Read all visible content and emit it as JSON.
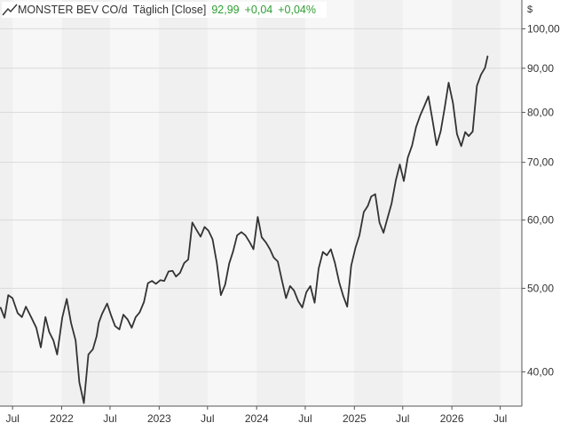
{
  "legend": {
    "instrument": "MONSTER BEV CO/d",
    "interval": "Täglich [Close]",
    "last": "92,99",
    "change": "+0,04",
    "change_pct": "+0,04%",
    "positive_color": "#2e9e32"
  },
  "chart_data": {
    "type": "line",
    "title": "MONSTER BEV CO/d",
    "currency_label": "$",
    "y_scale": "log",
    "ylim": [
      36.5,
      108
    ],
    "y_ticks": [
      40,
      50,
      60,
      70,
      80,
      90,
      100
    ],
    "y_tick_labels": [
      "40,00",
      "50,00",
      "60,00",
      "70,00",
      "80,00",
      "90,00",
      "100,00"
    ],
    "xlim": [
      "2021-05-15",
      "2026-09-20"
    ],
    "x_ticks": [
      "2021-07-01",
      "2022-01-01",
      "2022-07-01",
      "2023-01-01",
      "2023-07-01",
      "2024-01-01",
      "2024-07-01",
      "2025-01-01",
      "2025-07-01",
      "2026-01-01",
      "2026-07-01"
    ],
    "x_tick_labels": [
      "Jul",
      "2022",
      "Jul",
      "2023",
      "Jul",
      "2024",
      "Jul",
      "2025",
      "Jul",
      "2026",
      "Jul"
    ],
    "grid": true,
    "line_color": "#333333",
    "series": [
      {
        "x": [
          "2021-05-17",
          "2021-06-01",
          "2021-06-15",
          "2021-07-01",
          "2021-07-20",
          "2021-08-05",
          "2021-08-20",
          "2021-09-10",
          "2021-09-28",
          "2021-10-15",
          "2021-11-01",
          "2021-11-15",
          "2021-12-01",
          "2021-12-15",
          "2022-01-03",
          "2022-01-20",
          "2022-02-05",
          "2022-02-22",
          "2022-03-08",
          "2022-03-25",
          "2022-04-11",
          "2022-04-28",
          "2022-05-12",
          "2022-05-20",
          "2022-06-01",
          "2022-06-20",
          "2022-07-05",
          "2022-07-20",
          "2022-08-05",
          "2022-08-20",
          "2022-09-05",
          "2022-09-20",
          "2022-10-05",
          "2022-10-20",
          "2022-11-05",
          "2022-11-20",
          "2022-12-05",
          "2022-12-20",
          "2023-01-05",
          "2023-01-20",
          "2023-02-05",
          "2023-02-20",
          "2023-03-05",
          "2023-03-20",
          "2023-04-05",
          "2023-04-20",
          "2023-05-05",
          "2023-05-20",
          "2023-06-05",
          "2023-06-20",
          "2023-07-05",
          "2023-07-20",
          "2023-08-05",
          "2023-08-20",
          "2023-09-05",
          "2023-09-20",
          "2023-10-05",
          "2023-10-20",
          "2023-11-05",
          "2023-11-20",
          "2023-12-05",
          "2023-12-20",
          "2024-01-05",
          "2024-01-20",
          "2024-02-05",
          "2024-02-20",
          "2024-03-05",
          "2024-03-20",
          "2024-04-05",
          "2024-04-20",
          "2024-05-05",
          "2024-05-20",
          "2024-06-05",
          "2024-06-20",
          "2024-07-05",
          "2024-07-20",
          "2024-08-05",
          "2024-08-20",
          "2024-09-05",
          "2024-09-20",
          "2024-10-05",
          "2024-10-20",
          "2024-11-05",
          "2024-11-20",
          "2024-12-05",
          "2024-12-20",
          "2025-01-05",
          "2025-01-20",
          "2025-02-05",
          "2025-02-20",
          "2025-03-05",
          "2025-03-20",
          "2025-04-05",
          "2025-04-20",
          "2025-05-05",
          "2025-05-20",
          "2025-06-05",
          "2025-06-20",
          "2025-07-05",
          "2025-07-20",
          "2025-08-05",
          "2025-08-20",
          "2025-09-05",
          "2025-09-20",
          "2025-10-05",
          "2025-10-20",
          "2025-11-05",
          "2025-11-20",
          "2025-12-05",
          "2025-12-20",
          "2026-01-05",
          "2026-01-20",
          "2026-02-05",
          "2026-02-20",
          "2026-03-05",
          "2026-03-20",
          "2026-04-05",
          "2026-04-20",
          "2026-05-05",
          "2026-05-15"
        ],
        "values": [
          47.5,
          46.2,
          49.1,
          48.7,
          46.8,
          46.3,
          47.6,
          46.2,
          45.0,
          42.7,
          46.3,
          44.5,
          43.5,
          41.9,
          46.2,
          48.6,
          45.6,
          43.5,
          38.9,
          36.8,
          41.9,
          42.5,
          44.0,
          45.6,
          46.7,
          48.0,
          46.5,
          45.2,
          44.8,
          46.6,
          46.0,
          45.0,
          46.3,
          46.9,
          48.2,
          50.7,
          51.0,
          50.6,
          51.1,
          51.0,
          52.3,
          52.4,
          51.6,
          52.1,
          53.5,
          54.0,
          59.6,
          58.5,
          57.4,
          58.9,
          58.3,
          57.0,
          53.5,
          49.1,
          50.5,
          53.4,
          55.2,
          57.6,
          58.1,
          57.6,
          56.6,
          55.5,
          60.5,
          57.3,
          56.5,
          55.5,
          54.3,
          53.7,
          51.0,
          48.7,
          50.3,
          49.7,
          48.3,
          47.5,
          49.5,
          50.3,
          48.1,
          52.7,
          55.1,
          54.6,
          55.5,
          53.5,
          50.8,
          49.0,
          47.6,
          53.1,
          55.7,
          57.6,
          61.3,
          62.3,
          63.9,
          64.3,
          59.6,
          58.0,
          60.3,
          62.7,
          66.7,
          69.6,
          66.6,
          70.9,
          73.2,
          76.9,
          79.4,
          81.4,
          83.5,
          78.5,
          73.3,
          76.0,
          80.9,
          86.6,
          82.0,
          75.5,
          73.1,
          75.9,
          75.1,
          76.0,
          85.9,
          88.5,
          90.1,
          92.99
        ]
      }
    ]
  }
}
